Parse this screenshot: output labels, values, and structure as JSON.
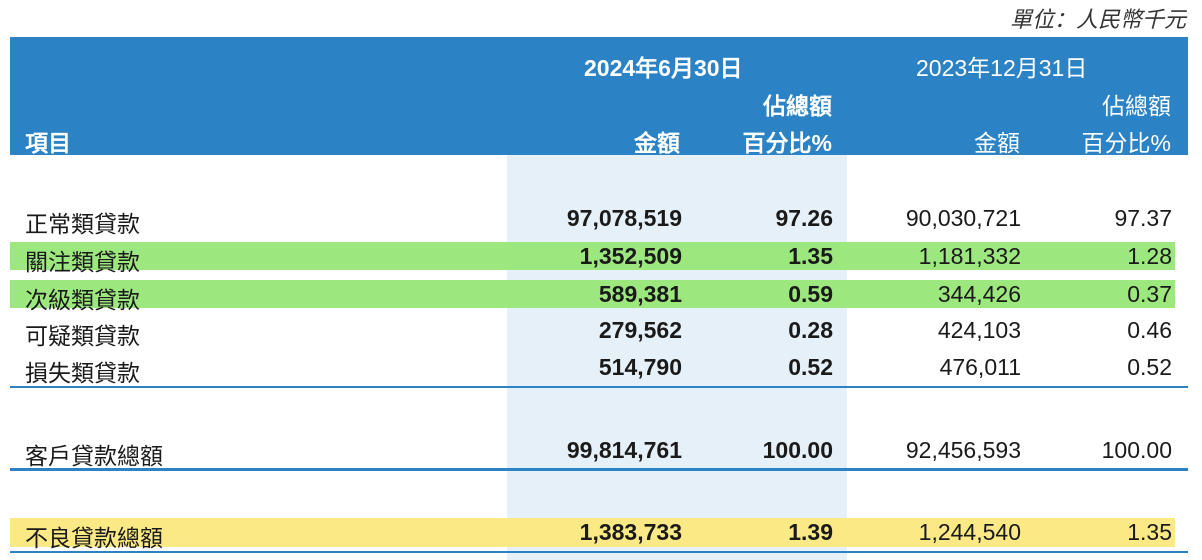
{
  "unit_label": "單位：人民幣千元",
  "header": {
    "item_label": "項目",
    "period_current": "2024年6月30日",
    "period_prior": "2023年12月31日",
    "share_label": "佔總額",
    "amount_label": "金額",
    "percent_label": "百分比%"
  },
  "rows": [
    {
      "label": "正常類貸款",
      "cur_amount": "97,078,519",
      "cur_pct": "97.26",
      "prior_amount": "90,030,721",
      "prior_pct": "97.37"
    },
    {
      "label": "關注類貸款",
      "cur_amount": "1,352,509",
      "cur_pct": "1.35",
      "prior_amount": "1,181,332",
      "prior_pct": "1.28"
    },
    {
      "label": "次級類貸款",
      "cur_amount": "589,381",
      "cur_pct": "0.59",
      "prior_amount": "344,426",
      "prior_pct": "0.37"
    },
    {
      "label": "可疑類貸款",
      "cur_amount": "279,562",
      "cur_pct": "0.28",
      "prior_amount": "424,103",
      "prior_pct": "0.46"
    },
    {
      "label": "損失類貸款",
      "cur_amount": "514,790",
      "cur_pct": "0.52",
      "prior_amount": "476,011",
      "prior_pct": "0.52"
    }
  ],
  "total": {
    "label": "客戶貸款總額",
    "cur_amount": "99,814,761",
    "cur_pct": "100.00",
    "prior_amount": "92,456,593",
    "prior_pct": "100.00"
  },
  "npl": {
    "label": "不良貸款總額",
    "cur_amount": "1,383,733",
    "cur_pct": "1.39",
    "prior_amount": "1,244,540",
    "prior_pct": "1.35"
  },
  "colors": {
    "header": "#2b83c5",
    "highlight_green": "#9de77f",
    "highlight_yellow": "#fbe985",
    "current_column_shade": "#e6f0f8"
  }
}
